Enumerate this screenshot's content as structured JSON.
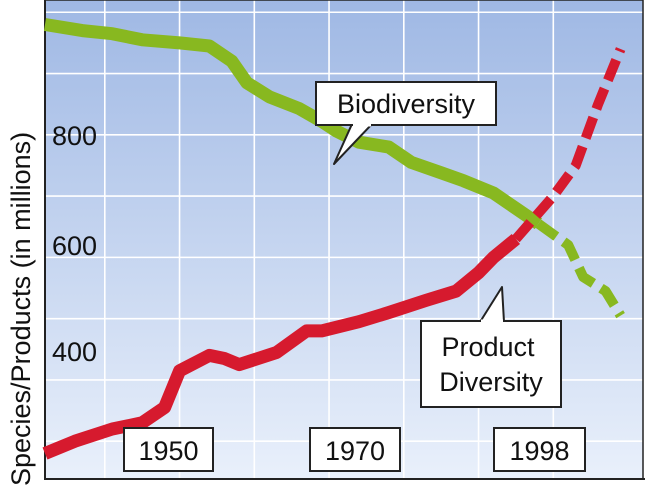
{
  "chart_data": {
    "type": "line",
    "title": "",
    "xlabel": "",
    "ylabel": "Species/Products (in millions)",
    "x_ticks": [
      "1950",
      "1970",
      "1998"
    ],
    "y_ticks": [
      "400",
      "600",
      "800"
    ],
    "xlim": [
      1932,
      2012
    ],
    "ylim": [
      240,
      1020
    ],
    "grid": true,
    "series": [
      {
        "name": "Biodiversity",
        "color": "#88b820",
        "points": [
          [
            1932,
            980
          ],
          [
            1937,
            970
          ],
          [
            1941,
            965
          ],
          [
            1945,
            955
          ],
          [
            1950,
            950
          ],
          [
            1954,
            945
          ],
          [
            1957,
            920
          ],
          [
            1959,
            885
          ],
          [
            1962,
            862
          ],
          [
            1966,
            843
          ],
          [
            1969,
            822
          ],
          [
            1971,
            806
          ],
          [
            1974,
            788
          ],
          [
            1978,
            780
          ],
          [
            1981,
            755
          ],
          [
            1985,
            738
          ],
          [
            1988,
            725
          ],
          [
            1992,
            705
          ],
          [
            1995,
            680
          ],
          [
            1998,
            655
          ]
        ],
        "projection": [
          [
            1998,
            655
          ],
          [
            2002,
            620
          ],
          [
            2004,
            568
          ],
          [
            2007,
            545
          ],
          [
            2009,
            505
          ]
        ]
      },
      {
        "name": "Product Diversity",
        "color": "#d61a2e",
        "points": [
          [
            1932,
            280
          ],
          [
            1936,
            300
          ],
          [
            1941,
            320
          ],
          [
            1945,
            330
          ],
          [
            1948,
            355
          ],
          [
            1950,
            415
          ],
          [
            1954,
            440
          ],
          [
            1956,
            435
          ],
          [
            1958,
            425
          ],
          [
            1963,
            445
          ],
          [
            1967,
            480
          ],
          [
            1969,
            480
          ],
          [
            1974,
            495
          ],
          [
            1978,
            510
          ],
          [
            1983,
            530
          ],
          [
            1987,
            545
          ],
          [
            1990,
            575
          ],
          [
            1992,
            600
          ],
          [
            1995,
            630
          ]
        ],
        "projection": [
          [
            1995,
            630
          ],
          [
            2000,
            700
          ],
          [
            2003,
            750
          ],
          [
            2006,
            850
          ],
          [
            2009,
            940
          ]
        ]
      }
    ],
    "annotations": [
      {
        "lines": [
          "Biodiversity"
        ]
      },
      {
        "lines": [
          "Product",
          "Diversity"
        ]
      }
    ]
  }
}
